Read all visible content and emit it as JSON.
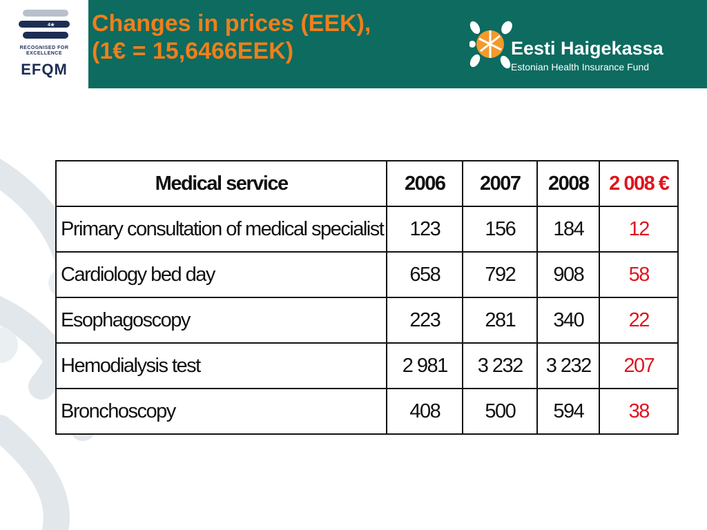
{
  "header": {
    "title_line1": "Changes in prices (EEK),",
    "title_line2": "(1€ = 15,6466EEK)",
    "efqm": {
      "badge_text": "4★",
      "recognised_line1": "RECOGNISED FOR",
      "recognised_line2": "EXCELLENCE",
      "logo_text": "EFQM"
    },
    "logo": {
      "name": "Eesti Haigekassa",
      "subtitle": "Estonian Health Insurance Fund"
    }
  },
  "colors": {
    "header_band": "#0d6b60",
    "title": "#f07f1a",
    "euro_column": "#e0141e",
    "efqm_navy": "#1d2e55"
  },
  "table": {
    "columns": [
      "Medical service",
      "2006",
      "2007",
      "2008",
      "2 008 €"
    ],
    "rows": [
      [
        "Primary consultation of medical specialist",
        "123",
        "156",
        "184",
        "12"
      ],
      [
        "Cardiology bed day",
        "658",
        "792",
        "908",
        "58"
      ],
      [
        "Esophagoscopy",
        "223",
        "281",
        "340",
        "22"
      ],
      [
        "Hemodialysis test",
        "2 981",
        "3 232",
        "3 232",
        "207"
      ],
      [
        "Bronchoscopy",
        "408",
        "500",
        "594",
        "38"
      ]
    ]
  }
}
